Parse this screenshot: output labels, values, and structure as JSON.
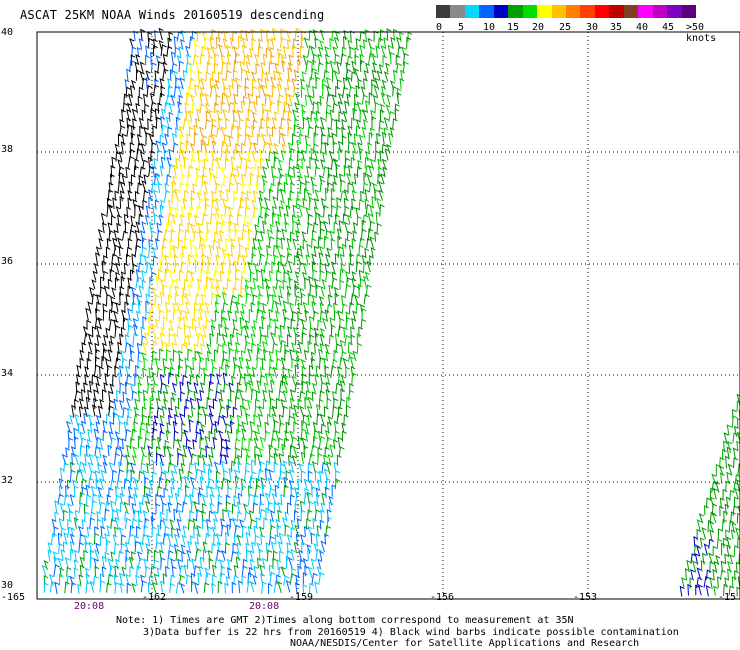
{
  "title": "ASCAT 25KM NOAA Winds 20160519 descending",
  "legend": {
    "colors": [
      "#3c3c3c",
      "#8a8a8a",
      "#00d8ff",
      "#0064ff",
      "#0000c8",
      "#00a000",
      "#00e000",
      "#ffff00",
      "#ffc000",
      "#ff8000",
      "#ff4000",
      "#ff0000",
      "#c00000",
      "#804020",
      "#ff00ff",
      "#c000c0",
      "#8000c0",
      "#5a0080"
    ],
    "labels": [
      "0",
      "5",
      "10",
      "15",
      "20",
      "25",
      "30",
      "35",
      "40",
      "45",
      ">50 knots"
    ]
  },
  "axes": {
    "lat_labels": [
      "40",
      "38",
      "36",
      "34",
      "32",
      "30"
    ],
    "lon_labels": [
      "-165",
      "-162",
      "-159",
      "-156",
      "-153",
      "-15"
    ]
  },
  "times": [
    "20:08",
    "20:08"
  ],
  "notes": [
    "Note: 1) Times are GMT 2)Times along bottom correspond to measurement at 35N",
    "3)Data buffer is 22 hrs from 20160519 4) Black wind barbs indicate possible contamination",
    "NOAA/NESDIS/Center for Satellite Applications and Research"
  ]
}
